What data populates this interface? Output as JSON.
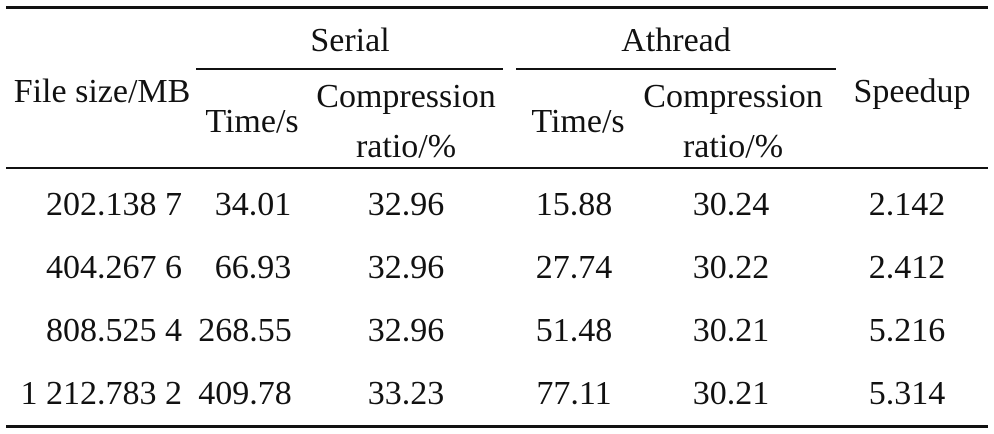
{
  "table": {
    "headers": {
      "file_size": "File size/MB",
      "serial_group": "Serial",
      "athread_group": "Athread",
      "speedup": "Speedup",
      "time": "Time/s",
      "compression_line1": "Compression",
      "compression_line2": "ratio/%"
    },
    "rows": [
      {
        "file_size": "202.138 7",
        "serial_time": "34.01",
        "serial_ratio": "32.96",
        "athread_time": "15.88",
        "athread_ratio": "30.24",
        "speedup": "2.142"
      },
      {
        "file_size": "404.267 6",
        "serial_time": "66.93",
        "serial_ratio": "32.96",
        "athread_time": "27.74",
        "athread_ratio": "30.22",
        "speedup": "2.412"
      },
      {
        "file_size": "808.525 4",
        "serial_time": "268.55",
        "serial_ratio": "32.96",
        "athread_time": "51.48",
        "athread_ratio": "30.21",
        "speedup": "5.216"
      },
      {
        "file_size": "1 212.783 2",
        "serial_time": "409.78",
        "serial_ratio": "33.23",
        "athread_time": "77.11",
        "athread_ratio": "30.21",
        "speedup": "5.314"
      }
    ]
  }
}
